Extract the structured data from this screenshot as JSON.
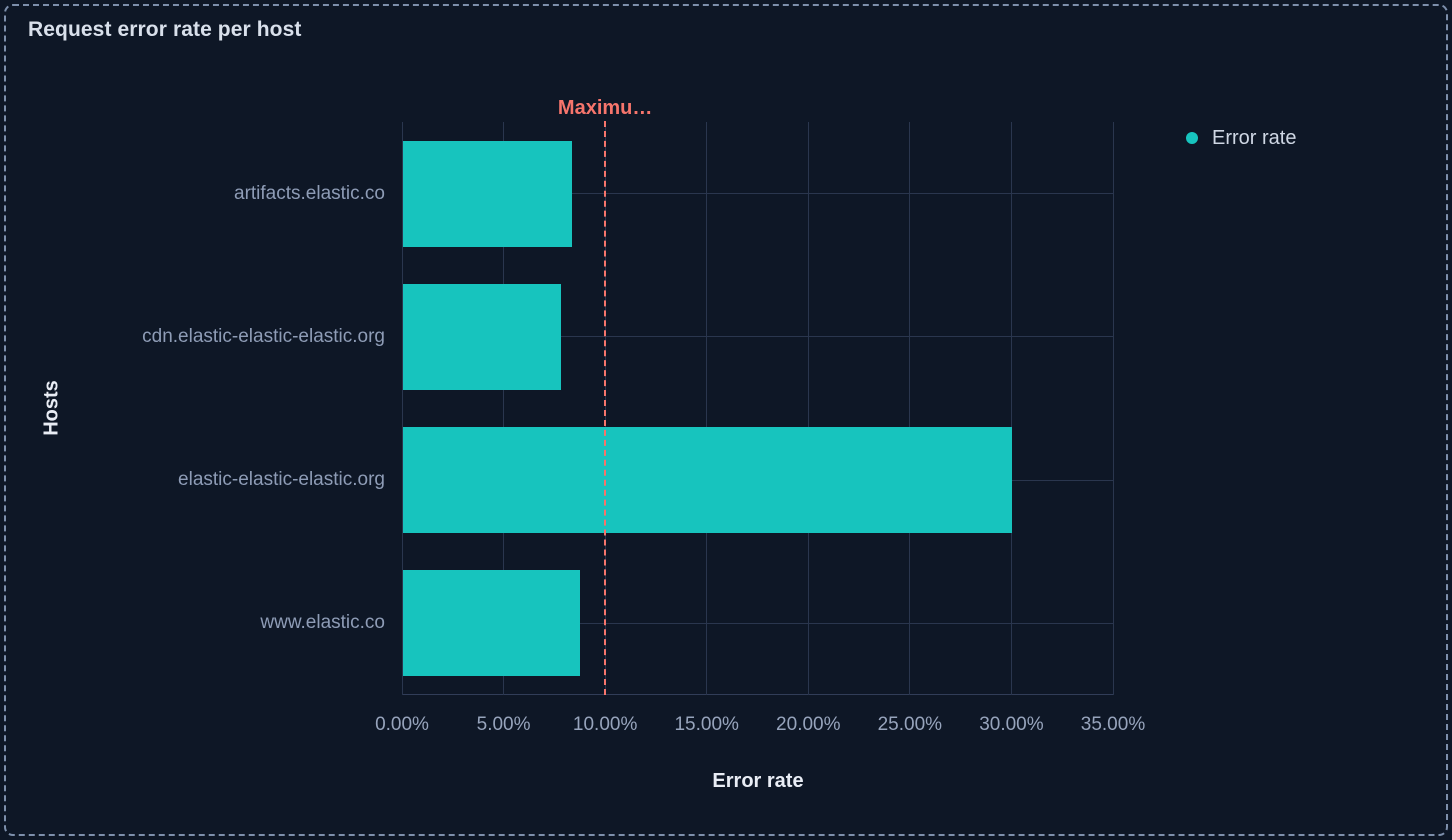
{
  "panel": {
    "title": "Request error rate per host"
  },
  "legend": {
    "position": "right",
    "items": [
      {
        "label": "Error rate",
        "color": "#17C4BE",
        "shape": "circle"
      }
    ]
  },
  "chart_data": {
    "type": "bar",
    "orientation": "horizontal",
    "title": "Request error rate per host",
    "xlabel": "Error rate",
    "ylabel": "Hosts",
    "categories": [
      "artifacts.elastic.co",
      "cdn.elastic-elastic-elastic.org",
      "elastic-elastic-elastic.org",
      "www.elastic.co"
    ],
    "series": [
      {
        "name": "Error rate",
        "color": "#17C4BE",
        "values": [
          8.3,
          7.8,
          30.0,
          8.7
        ]
      }
    ],
    "value_unit": "%",
    "xlim": [
      0,
      35
    ],
    "x_tick_values": [
      0,
      5,
      10,
      15,
      20,
      25,
      30,
      35
    ],
    "x_tick_labels": [
      "0.00%",
      "5.00%",
      "10.00%",
      "15.00%",
      "20.00%",
      "25.00%",
      "30.00%",
      "35.00%"
    ],
    "grid": true,
    "legend_position": "top-right",
    "reference_line": {
      "axis": "x",
      "value": 10,
      "label": "Maximu…",
      "color": "#F6756C",
      "style": "dashed"
    }
  },
  "colors": {
    "background": "#0E1726",
    "panel_border": "#91A5C4",
    "bar": "#17C4BE",
    "gridline": "#2A364E",
    "title_text": "#D9E0EB",
    "axis_title_text": "#E9EDF5",
    "tick_text": "#97A4BC",
    "category_text": "#8E9CB6",
    "legend_text": "#CFD7E4",
    "reference": "#F6756C"
  }
}
